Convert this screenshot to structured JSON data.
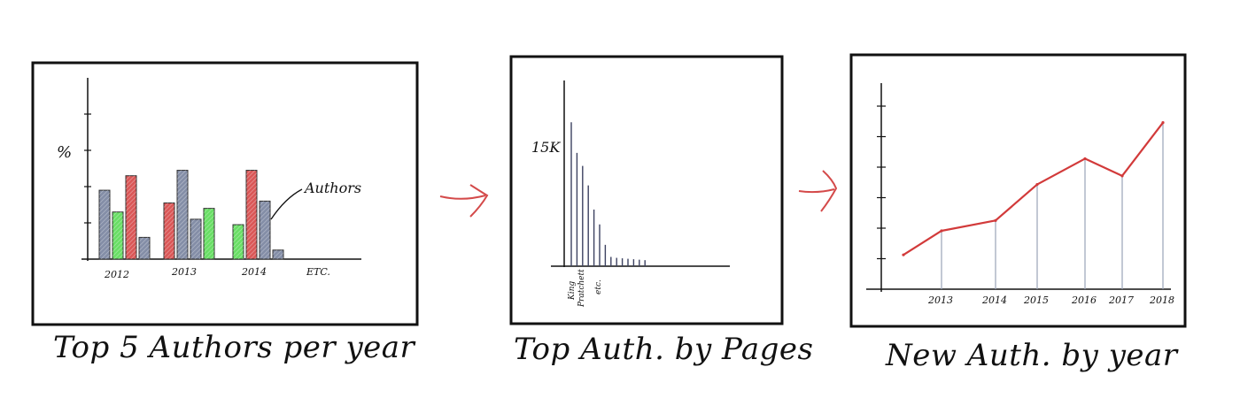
{
  "colors": {
    "frame": "#111111",
    "blue": "#6e7a98",
    "red": "#d33a3a",
    "green": "#4fd84a",
    "arrow": "#d44a4a",
    "line": "#d23a3a",
    "stem": "#9aa3b8"
  },
  "arrows": [
    {
      "name": "arrow-1-to-2",
      "direction": "right"
    },
    {
      "name": "arrow-2-to-3",
      "direction": "right"
    }
  ],
  "panels": [
    {
      "caption": "Top 5 Authors per year",
      "chart_data": {
        "type": "bar",
        "ylabel": "%",
        "annotation": "Authors",
        "categories": [
          "2012",
          "2013",
          "2014",
          "ETC."
        ],
        "groups": [
          {
            "year": "2012",
            "bars": [
              {
                "color": "blue",
                "value": 0.38
              },
              {
                "color": "green",
                "value": 0.26
              },
              {
                "color": "red",
                "value": 0.46
              },
              {
                "color": "blue",
                "value": 0.12
              }
            ]
          },
          {
            "year": "2013",
            "bars": [
              {
                "color": "red",
                "value": 0.31
              },
              {
                "color": "blue",
                "value": 0.49
              },
              {
                "color": "blue",
                "value": 0.22
              },
              {
                "color": "green",
                "value": 0.28
              }
            ]
          },
          {
            "year": "2014",
            "bars": [
              {
                "color": "green",
                "value": 0.19
              },
              {
                "color": "red",
                "value": 0.49
              },
              {
                "color": "blue",
                "value": 0.32
              },
              {
                "color": "blue",
                "value": 0.05
              }
            ]
          }
        ],
        "ylim": [
          0,
          1
        ]
      }
    },
    {
      "caption": "Top Auth. by Pages",
      "chart_data": {
        "type": "bar",
        "y_tick_label": "15K",
        "x_labels": [
          "King",
          "Pratchett",
          "etc."
        ],
        "values": [
          15500,
          12200,
          10800,
          8700,
          6100,
          4500,
          2300,
          1000,
          900,
          850,
          800,
          750,
          700,
          650
        ],
        "ylim": [
          0,
          20000
        ]
      }
    },
    {
      "caption": "New Auth. by year",
      "chart_data": {
        "type": "line",
        "x": [
          "",
          "2013",
          "2014",
          "2015",
          "2016",
          "2017",
          "2018"
        ],
        "values": [
          20,
          34,
          40,
          61,
          76,
          66,
          97
        ],
        "ylim": [
          0,
          120
        ],
        "x_tick_labels": [
          "2013",
          "2014",
          "2015",
          "2016",
          "2017",
          "2018"
        ]
      }
    }
  ]
}
